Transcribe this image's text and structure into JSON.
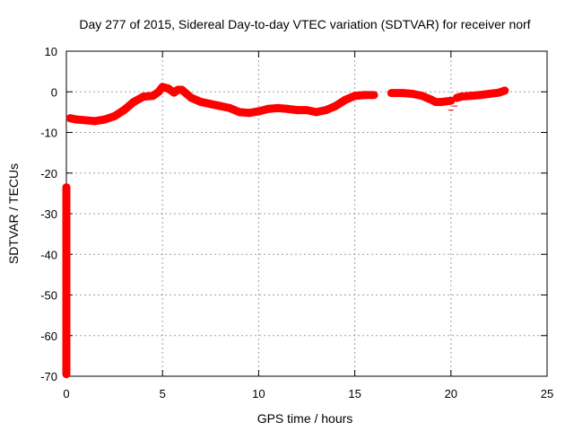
{
  "chart_data": {
    "type": "scatter",
    "title": "Day 277 of 2015, Sidereal Day-to-day VTEC variation (SDTVAR) for receiver norf",
    "xlabel": "GPS time / hours",
    "ylabel": "SDTVAR / TECUs",
    "xlim": [
      0,
      25
    ],
    "ylim": [
      -70,
      10
    ],
    "xticks": [
      0,
      5,
      10,
      15,
      20,
      25
    ],
    "yticks": [
      -70,
      -60,
      -50,
      -40,
      -30,
      -20,
      -10,
      0,
      10
    ],
    "grid": true,
    "legend": "none",
    "color": "#ff0000",
    "series": [
      {
        "x": [
          0.2,
          0.5,
          1.0,
          1.5,
          2.0,
          2.5,
          3.0,
          3.5,
          4.0,
          4.5,
          4.8,
          5.0,
          5.3,
          5.6,
          5.8,
          6.0,
          6.5,
          7.0,
          7.5,
          8.0,
          8.5,
          9.0,
          9.5,
          10.0,
          10.5,
          11.0,
          11.5,
          12.0,
          12.5,
          13.0,
          13.5,
          14.0,
          14.5,
          15.0,
          15.5,
          16.0
        ],
        "y": [
          -6.5,
          -6.8,
          -7.0,
          -7.2,
          -6.8,
          -6.0,
          -4.5,
          -2.5,
          -1.2,
          -1.0,
          0.0,
          1.2,
          0.8,
          -0.2,
          0.5,
          0.5,
          -1.5,
          -2.5,
          -3.0,
          -3.5,
          -4.0,
          -5.0,
          -5.2,
          -4.8,
          -4.2,
          -4.0,
          -4.2,
          -4.5,
          -4.5,
          -5.0,
          -4.5,
          -3.5,
          -2.0,
          -1.0,
          -0.8,
          -0.8
        ]
      },
      {
        "x": [
          16.9,
          17.0,
          17.5,
          18.0,
          18.5,
          19.0,
          19.2,
          19.5,
          20.0
        ],
        "y": [
          -0.3,
          -0.3,
          -0.3,
          -0.5,
          -1.0,
          -2.0,
          -2.5,
          -2.5,
          -2.2
        ]
      },
      {
        "x": [
          20.0,
          20.2
        ],
        "y": [
          -4.5,
          -3.5
        ]
      },
      {
        "x": [
          20.3,
          20.5,
          21.0,
          21.5,
          22.0,
          22.5,
          22.8
        ],
        "y": [
          -1.5,
          -1.2,
          -1.0,
          -0.8,
          -0.5,
          -0.2,
          0.3
        ]
      },
      {
        "x": [
          0.0,
          0.0,
          0.0,
          0.0
        ],
        "y": [
          -23.5,
          -35.0,
          -37.5,
          -69.5
        ]
      }
    ]
  }
}
